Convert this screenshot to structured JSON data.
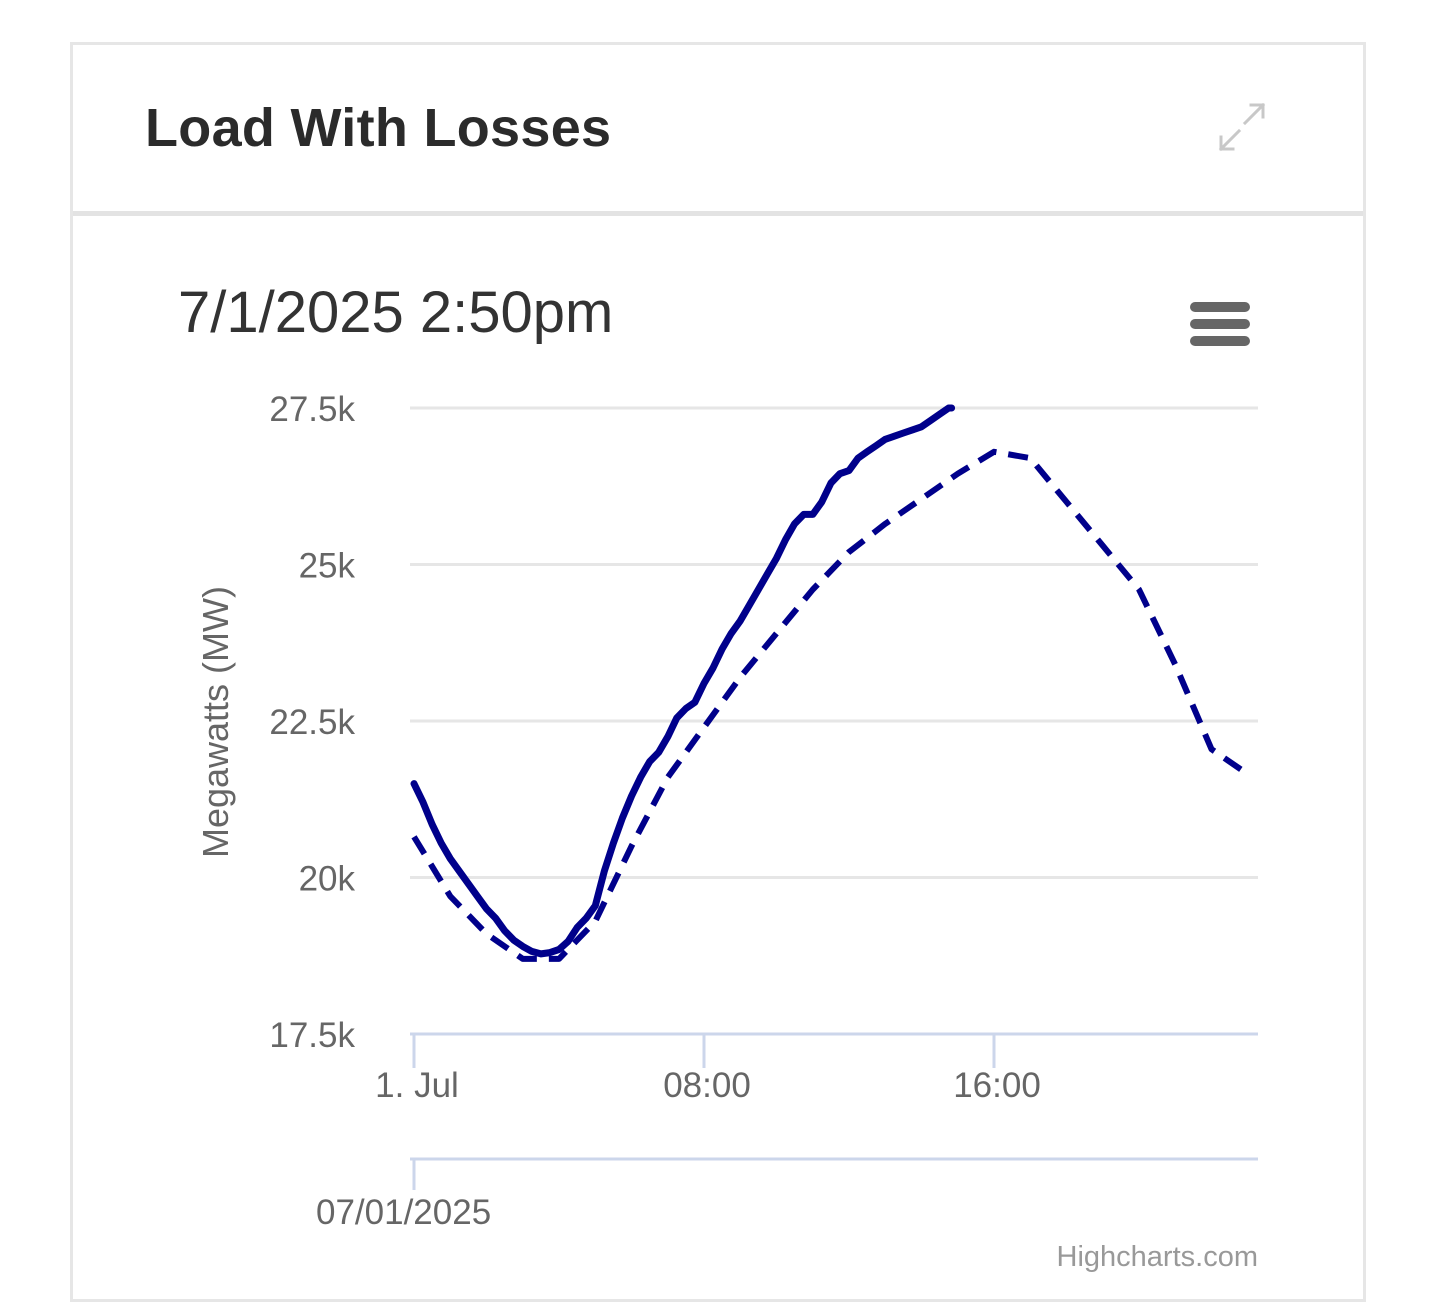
{
  "card": {
    "title": "Load With Losses",
    "expand_icon": "expand-arrows-icon"
  },
  "chart_data": {
    "type": "line",
    "title": "7/1/2025 2:50pm",
    "ylabel": "Megawatts (MW)",
    "xlabel": "",
    "ylim": [
      17500,
      27500
    ],
    "y_ticks": [
      "17.5k",
      "20k",
      "22.5k",
      "25k",
      "27.5k"
    ],
    "x_ticks": [
      "1. Jul",
      "08:00",
      "16:00"
    ],
    "x_unit": "hours since 00:00 on 07/01/2025",
    "xlim": [
      0,
      23.17
    ],
    "navigator_label": "07/01/2025",
    "credits": "Highcharts.com",
    "menu_icon": "hamburger-menu-icon",
    "colors": {
      "series": "#00008b",
      "grid": "#e6e6e6",
      "axis": "#ccd6eb",
      "text": "#666666"
    },
    "series": [
      {
        "style": "solid",
        "x": [
          0,
          0.25,
          0.5,
          0.75,
          1.0,
          1.25,
          1.5,
          1.75,
          2.0,
          2.25,
          2.5,
          2.75,
          3.0,
          3.25,
          3.5,
          3.75,
          4.0,
          4.25,
          4.5,
          4.75,
          5.0,
          5.25,
          5.5,
          5.75,
          6.0,
          6.25,
          6.5,
          6.75,
          7.0,
          7.25,
          7.5,
          7.75,
          8.0,
          8.25,
          8.5,
          8.75,
          9.0,
          9.25,
          9.5,
          9.75,
          10.0,
          10.25,
          10.5,
          10.75,
          11.0,
          11.25,
          11.5,
          11.75,
          12.0,
          12.25,
          12.5,
          12.75,
          13.0,
          13.25,
          13.5,
          13.75,
          14.0,
          14.25,
          14.5,
          14.75,
          14.83
        ],
        "values": [
          21500,
          21200,
          20850,
          20550,
          20300,
          20100,
          19900,
          19700,
          19500,
          19350,
          19150,
          19000,
          18900,
          18820,
          18780,
          18800,
          18850,
          18980,
          19200,
          19350,
          19550,
          20100,
          20550,
          20950,
          21300,
          21600,
          21850,
          22000,
          22250,
          22550,
          22700,
          22800,
          23100,
          23350,
          23650,
          23900,
          24100,
          24350,
          24600,
          24850,
          25100,
          25400,
          25650,
          25800,
          25800,
          26000,
          26300,
          26450,
          26500,
          26700,
          26800,
          26900,
          27000,
          27050,
          27100,
          27150,
          27200,
          27300,
          27400,
          27500,
          27500
        ]
      },
      {
        "style": "dashed",
        "x": [
          0,
          1,
          2,
          3,
          4,
          5,
          6,
          7,
          8,
          9,
          10,
          11,
          12,
          13,
          14,
          15,
          16,
          17,
          18,
          19,
          20,
          21,
          22,
          23
        ],
        "values": [
          20650,
          19700,
          19100,
          18700,
          18700,
          19300,
          20500,
          21600,
          22400,
          23200,
          23900,
          24600,
          25200,
          25650,
          26050,
          26450,
          26800,
          26700,
          26000,
          25300,
          24600,
          23400,
          22050,
          21650
        ]
      }
    ]
  }
}
